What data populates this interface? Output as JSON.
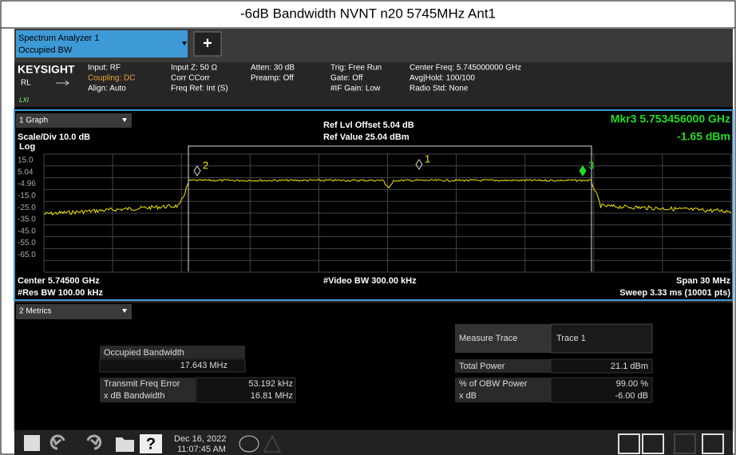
{
  "title": "-6dB Bandwidth NVNT n20 5745MHz Ant1",
  "tab": {
    "name": "Spectrum Analyzer 1",
    "mode": "Occupied BW",
    "add": "+"
  },
  "info": {
    "brand": "KEYSIGHT",
    "rl": "RL",
    "lxi": "LXI",
    "col1": [
      "Input: RF",
      "Coupling: DC",
      "Align: Auto"
    ],
    "col2": [
      "Input Z: 50 Ω",
      "Corr CCorr",
      "Freq Ref: Int (S)"
    ],
    "col3": [
      "Atten: 30 dB",
      "Preamp: Off"
    ],
    "col4": [
      "Trig: Free Run",
      "Gate: Off",
      "#IF Gain: Low"
    ],
    "col5": [
      "Center Freq: 5.745000000 GHz",
      "Avg|Hold: 100/100",
      "Radio Std: None"
    ]
  },
  "graph": {
    "window": "1 Graph",
    "ref_offset": "Ref Lvl Offset 5.04 dB",
    "ref_value": "Ref Value 25.04 dBm",
    "marker": "Mkr3  5.753456000 GHz",
    "marker_value": "-1.65 dBm",
    "scale": "Scale/Div 10.0 dB",
    "log": "Log",
    "yticks": [
      "15.0",
      "5.04",
      "-4.96",
      "-15.0",
      "-25.0",
      "-35.0",
      "-45.0",
      "-55.0",
      "-65.0"
    ],
    "marker_labels": [
      "1",
      "2",
      "3"
    ],
    "center": "Center 5.74500 GHz",
    "res_bw": "#Res BW 100.00 kHz",
    "video_bw": "#Video BW 300.00 kHz",
    "span": "Span 30 MHz",
    "sweep": "Sweep 3.33 ms (10001 pts)"
  },
  "metrics": {
    "window": "2 Metrics",
    "obw_label": "Occupied Bandwidth",
    "obw_value": "17.643 MHz",
    "tfe_label": "Transmit Freq Error",
    "tfe_value": "53.192 kHz",
    "xdb_bw_label": "x dB Bandwidth",
    "xdb_bw_value": "16.81 MHz",
    "measure_trace_label": "Measure Trace",
    "measure_trace_value": "Trace 1",
    "total_power_label": "Total Power",
    "total_power_value": "21.1 dBm",
    "obw_power_label": "% of OBW Power",
    "obw_power_value": "99.00 %",
    "xdb_label": "x dB",
    "xdb_value": "-6.00 dB"
  },
  "taskbar": {
    "date": "Dec 16, 2022",
    "time": "11:07:45 AM",
    "help": "?"
  }
}
